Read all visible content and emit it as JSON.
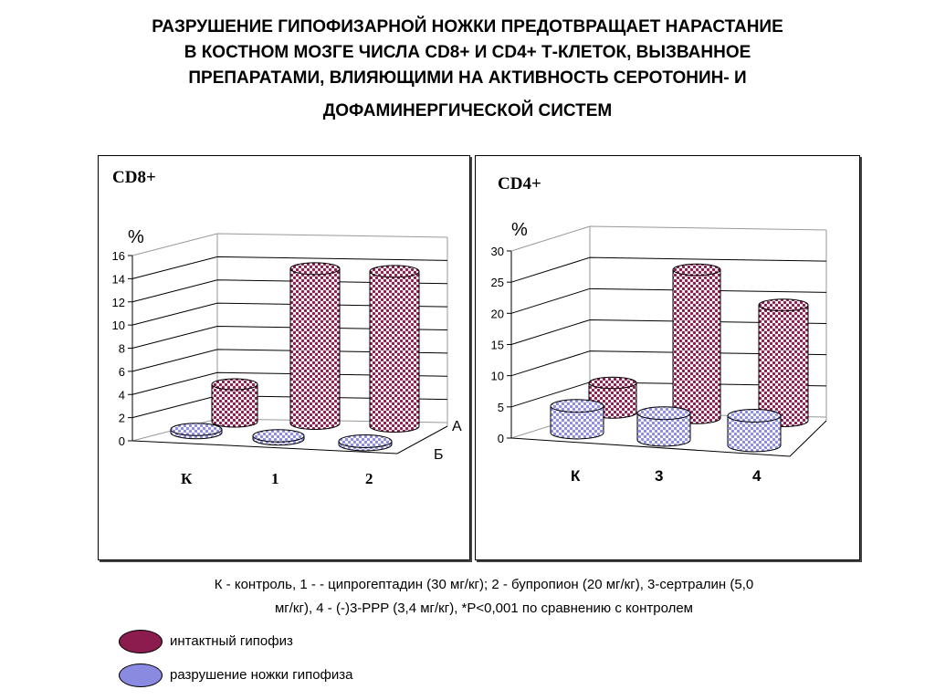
{
  "title": [
    "РАЗРУШЕНИЕ ГИПОФИЗАРНОЙ НОЖКИ ПРЕДОТВРАЩАЕТ НАРАСТАНИЕ",
    "В КОСТНОМ МОЗГЕ ЧИСЛА CD8+ И CD4+ Т-КЛЕТОК, ВЫЗВАННОЕ",
    "ПРЕПАРАТАМИ, ВЛИЯЮЩИМИ НА АКТИВНОСТЬ СЕРОТОНИН- И",
    "ДОФАМИНЕРГИЧЕСКОЙ СИСТЕМ"
  ],
  "colors": {
    "intact": "#8c1c4e",
    "lesion": "#8a8ae0"
  },
  "chart_data": [
    {
      "type": "bar",
      "title": "CD8+",
      "ylabel": "%",
      "categories": [
        "К",
        "1",
        "2"
      ],
      "series_labels": [
        "А",
        "Б"
      ],
      "ylim": [
        0,
        16
      ],
      "yticks": [
        "0",
        "2",
        "4",
        "6",
        "8",
        "10",
        "12",
        "14",
        "16"
      ],
      "series": [
        {
          "name": "интактный гипофиз",
          "values": [
            3.5,
            14.5,
            14.5
          ]
        },
        {
          "name": "разрушение ножки гипофиза",
          "values": [
            0.3,
            0.3,
            0.3
          ]
        }
      ]
    },
    {
      "type": "bar",
      "title": "CD4+",
      "ylabel": "%",
      "categories": [
        "К",
        "3",
        "4"
      ],
      "ylim": [
        0,
        30
      ],
      "yticks": [
        "0",
        "5",
        "10",
        "15",
        "20",
        "25",
        "30"
      ],
      "series": [
        {
          "name": "интактный гипофиз",
          "values": [
            5,
            25,
            19.5
          ]
        },
        {
          "name": "разрушение ножки гипофиза",
          "values": [
            4.5,
            4.5,
            5
          ]
        }
      ]
    }
  ],
  "note": [
    "К - контроль, 1 - - ципрогептадин (30 мг/кг); 2  - бупропион (20 мг/кг),  3-сертралин (5,0",
    "мг/кг), 4 - (-)3-PPP (3,4 мг/кг), *P<0,001 по сравнению с контролем"
  ],
  "legend": [
    "интактный гипофиз",
    "разрушение ножки гипофиза"
  ]
}
